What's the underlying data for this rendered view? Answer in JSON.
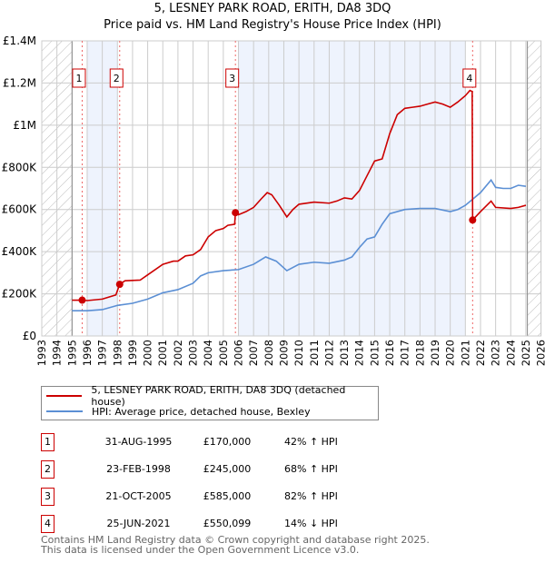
{
  "title": "5, LESNEY PARK ROAD, ERITH, DA8 3DQ",
  "subtitle": "Price paid vs. HM Land Registry's House Price Index (HPI)",
  "chart_data": {
    "type": "line",
    "title": "5, LESNEY PARK ROAD, ERITH, DA8 3DQ",
    "subtitle": "Price paid vs. HM Land Registry's House Price Index (HPI)",
    "xlim": [
      1993,
      2026
    ],
    "ylim": [
      0,
      1400000
    ],
    "grid": true,
    "x_ticks": [
      "1993",
      "1994",
      "1995",
      "1996",
      "1997",
      "1998",
      "1999",
      "2000",
      "2001",
      "2002",
      "2003",
      "2004",
      "2005",
      "2006",
      "2007",
      "2008",
      "2009",
      "2010",
      "2011",
      "2012",
      "2013",
      "2014",
      "2015",
      "2016",
      "2017",
      "2018",
      "2019",
      "2020",
      "2021",
      "2022",
      "2023",
      "2024",
      "2025",
      "2026"
    ],
    "y_ticks": [
      {
        "v": 0,
        "label": "£0"
      },
      {
        "v": 200000,
        "label": "£200K"
      },
      {
        "v": 400000,
        "label": "£400K"
      },
      {
        "v": 600000,
        "label": "£600K"
      },
      {
        "v": 800000,
        "label": "£800K"
      },
      {
        "v": 1000000,
        "label": "£1M"
      },
      {
        "v": 1200000,
        "label": "£1.2M"
      },
      {
        "v": 1400000,
        "label": "£1.4M"
      }
    ],
    "hatched_ranges": [
      [
        1993,
        1995
      ],
      [
        2025.1,
        2026
      ]
    ],
    "shaded_ranges": [
      [
        1996,
        1998
      ],
      [
        2006,
        2021
      ]
    ],
    "series": [
      {
        "name": "5, LESNEY PARK ROAD, ERITH, DA8 3DQ (detached house)",
        "color": "#cc0000",
        "x": [
          1995.0,
          1995.67,
          1996,
          1997,
          1997.9,
          1998.15,
          1998.5,
          1999.5,
          2000,
          2001,
          2001.7,
          2002,
          2002.5,
          2003,
          2003.5,
          2004,
          2004.5,
          2005,
          2005.3,
          2005.75,
          2005.8,
          2006,
          2006.5,
          2007,
          2007.5,
          2007.9,
          2008.2,
          2008.7,
          2009.2,
          2009.6,
          2010,
          2011,
          2012,
          2012.5,
          2013,
          2013.5,
          2014,
          2014.5,
          2015,
          2015.5,
          2016,
          2016.5,
          2017,
          2017.5,
          2018,
          2018.5,
          2019,
          2019.5,
          2020,
          2020.5,
          2021,
          2021.3,
          2021.45,
          2021.48,
          2022,
          2022.7,
          2023,
          2024,
          2024.5,
          2025
        ],
        "y": [
          170000,
          170000,
          168000,
          175000,
          195000,
          245000,
          262000,
          265000,
          290000,
          340000,
          355000,
          355000,
          380000,
          385000,
          410000,
          470000,
          500000,
          510000,
          525000,
          530000,
          585000,
          575000,
          590000,
          610000,
          650000,
          680000,
          670000,
          620000,
          565000,
          600000,
          625000,
          635000,
          630000,
          640000,
          655000,
          650000,
          690000,
          760000,
          830000,
          840000,
          960000,
          1050000,
          1080000,
          1085000,
          1090000,
          1100000,
          1110000,
          1100000,
          1085000,
          1110000,
          1140000,
          1165000,
          1160000,
          550099,
          590000,
          640000,
          610000,
          605000,
          610000,
          620000
        ]
      },
      {
        "name": "HPI: Average price, detached house, Bexley",
        "color": "#5b8fd4",
        "x": [
          1995,
          1996,
          1997,
          1998,
          1999,
          2000,
          2001,
          2002,
          2003,
          2003.5,
          2004,
          2005,
          2006,
          2007,
          2007.8,
          2008.5,
          2009.2,
          2010,
          2011,
          2012,
          2013,
          2013.5,
          2014,
          2014.5,
          2015,
          2015.5,
          2016,
          2017,
          2018,
          2019,
          2020,
          2020.5,
          2021,
          2021.5,
          2022,
          2022.7,
          2023,
          2023.5,
          2024,
          2024.5,
          2025
        ],
        "y": [
          120000,
          120000,
          125000,
          145000,
          155000,
          175000,
          205000,
          220000,
          250000,
          285000,
          300000,
          310000,
          315000,
          340000,
          375000,
          355000,
          310000,
          340000,
          350000,
          345000,
          360000,
          375000,
          420000,
          460000,
          470000,
          530000,
          580000,
          600000,
          605000,
          605000,
          590000,
          600000,
          620000,
          650000,
          680000,
          740000,
          705000,
          700000,
          700000,
          715000,
          710000
        ]
      }
    ],
    "sales": [
      {
        "n": "1",
        "x": 1995.67,
        "y": 170000
      },
      {
        "n": "2",
        "x": 1998.15,
        "y": 245000
      },
      {
        "n": "3",
        "x": 2005.8,
        "y": 585000
      },
      {
        "n": "4",
        "x": 2021.48,
        "y": 550099
      }
    ]
  },
  "legend": {
    "property": "5, LESNEY PARK ROAD, ERITH, DA8 3DQ (detached house)",
    "hpi": "HPI: Average price, detached house, Bexley"
  },
  "transactions": [
    {
      "n": "1",
      "date": "31-AUG-1995",
      "price": "£170,000",
      "hpi": "42% ↑ HPI"
    },
    {
      "n": "2",
      "date": "23-FEB-1998",
      "price": "£245,000",
      "hpi": "68% ↑ HPI"
    },
    {
      "n": "3",
      "date": "21-OCT-2005",
      "price": "£585,000",
      "hpi": "82% ↑ HPI"
    },
    {
      "n": "4",
      "date": "25-JUN-2021",
      "price": "£550,099",
      "hpi": "14% ↓ HPI"
    }
  ],
  "footer": {
    "line1": "Contains HM Land Registry data © Crown copyright and database right 2025.",
    "line2": "This data is licensed under the Open Government Licence v3.0."
  }
}
